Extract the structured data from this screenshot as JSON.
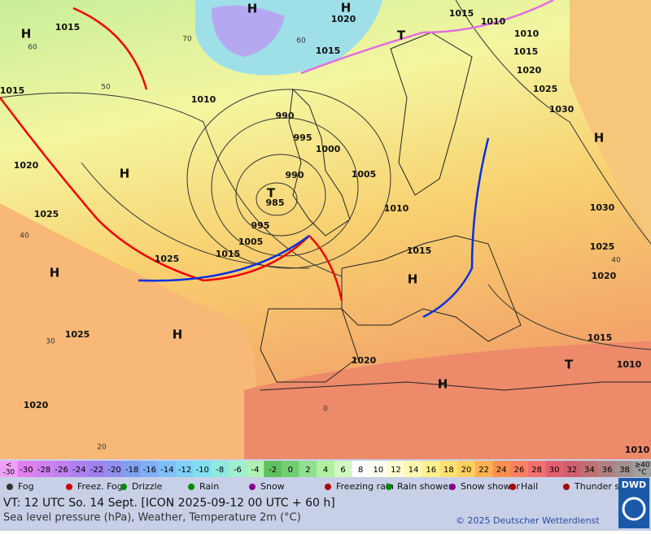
{
  "map": {
    "labels": [
      "1015",
      "1015",
      "1020",
      "1025",
      "1025",
      "1015",
      "1005",
      "995",
      "985",
      "990",
      "995",
      "1000",
      "990",
      "1010",
      "1005",
      "1010",
      "1015",
      "1015",
      "1020",
      "1015",
      "1010",
      "1010",
      "1015",
      "1020",
      "1025",
      "1030",
      "1030",
      "1025",
      "1020",
      "1015",
      "1010",
      "1025",
      "1020",
      "1020",
      "1010"
    ],
    "highs": [
      "H",
      "H",
      "H",
      "H",
      "H",
      "H",
      "H",
      "H",
      "H"
    ],
    "lows": [
      "T",
      "T",
      "T"
    ],
    "isotherm_labels": [
      "60",
      "50",
      "40",
      "30",
      "20",
      "0",
      "70",
      "60",
      "40"
    ]
  },
  "scale": {
    "low_end": [
      "<",
      "-30"
    ],
    "values": [
      -30,
      -28,
      -26,
      -24,
      -22,
      -20,
      -18,
      -16,
      -14,
      -12,
      -10,
      -8,
      -6,
      -4,
      -2,
      0,
      2,
      4,
      6,
      8,
      10,
      12,
      14,
      16,
      18,
      20,
      22,
      24,
      26,
      28,
      30,
      32,
      34,
      36,
      38
    ],
    "high_end": [
      "≥40",
      "°C"
    ]
  },
  "legend": [
    "Fog",
    "Freez. Fog",
    "Drizzle",
    "Rain",
    "Snow",
    "Freezing rain",
    "Rain shower",
    "Snow shower",
    "Hail",
    "Thunder storm"
  ],
  "footer": {
    "valid_time": "VT: 12 UTC So.  14 Sept. [ICON 2025-09-12  00 UTC + 60 h]",
    "description": "Sea level pressure (hPa), Weather, Temperature 2m (°C)",
    "copyright": "© 2025 Deutscher Wetterdienst",
    "logo": "DWD"
  }
}
